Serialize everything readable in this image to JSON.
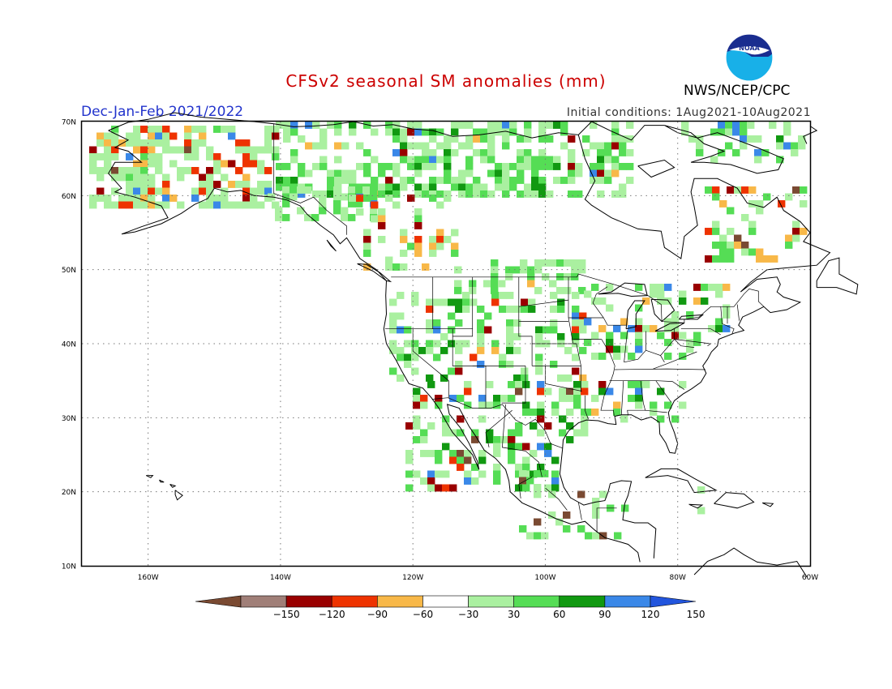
{
  "header": {
    "title": "CFSv2 seasonal SM anomalies (mm)",
    "season": "Dec-Jan-Feb 2021/2022",
    "initial_conditions": "Initial conditions: 1Aug2021-10Aug2021",
    "agency": "NWS/NCEP/CPC",
    "logo_text": "NOAA"
  },
  "map": {
    "lon_range": [
      -170,
      -60
    ],
    "lat_range": [
      10,
      70
    ],
    "lat_labels": [
      "70N",
      "60N",
      "50N",
      "40N",
      "30N",
      "20N",
      "10N"
    ],
    "lon_labels": [
      "160W",
      "140W",
      "120W",
      "100W",
      "80W",
      "60W"
    ],
    "lat_values": [
      70,
      60,
      50,
      40,
      30,
      20,
      10
    ],
    "lon_values": [
      -160,
      -140,
      -120,
      -100,
      -80,
      -60
    ],
    "grid": "dotted"
  },
  "legend": {
    "labels": [
      "-150",
      "-120",
      "-90",
      "-60",
      "-30",
      "30",
      "60",
      "90",
      "120",
      "150"
    ],
    "colors": [
      "#7a4a32",
      "#a07f78",
      "#990000",
      "#ee3300",
      "#f8b848",
      "#ffffff",
      "#aaf0a0",
      "#55dd55",
      "#119911",
      "#3a88e8",
      "#2255dd"
    ]
  }
}
